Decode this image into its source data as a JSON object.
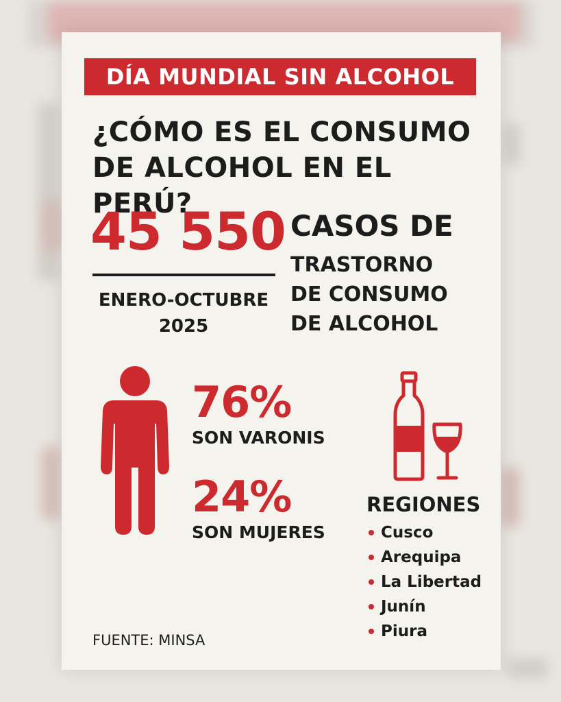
{
  "banner": "DÍA MUNDIAL SIN ALCOHOL",
  "question_line1": "¿CÓMO ES EL CONSUMO",
  "question_line2": "DE ALCOHOL EN EL PERÚ?",
  "cases": {
    "number": "45 550",
    "label_head": "CASOS DE",
    "label_lines": [
      "TRASTORNO",
      "DE CONSUMO",
      "DE ALCOHOL"
    ],
    "period_line1": "ENERO-OCTUBRE",
    "period_line2": "2025"
  },
  "gender": {
    "men_pct": "76%",
    "men_label": "SON VARONIS",
    "women_pct": "24%",
    "women_label": "SON MUJERES"
  },
  "regions": {
    "title": "REGIONES",
    "items": [
      "Cusco",
      "Arequipa",
      "La Libertad",
      "Junín",
      "Piura"
    ]
  },
  "source": "FUENTE: MINSA",
  "icons": [
    "person-icon",
    "wine-bottle-icon",
    "wine-glass-icon",
    "bullet-dot-icon"
  ],
  "colors": {
    "accent": "#cd2a2f",
    "text": "#1c1c1c",
    "card": "#f5f3ee"
  }
}
